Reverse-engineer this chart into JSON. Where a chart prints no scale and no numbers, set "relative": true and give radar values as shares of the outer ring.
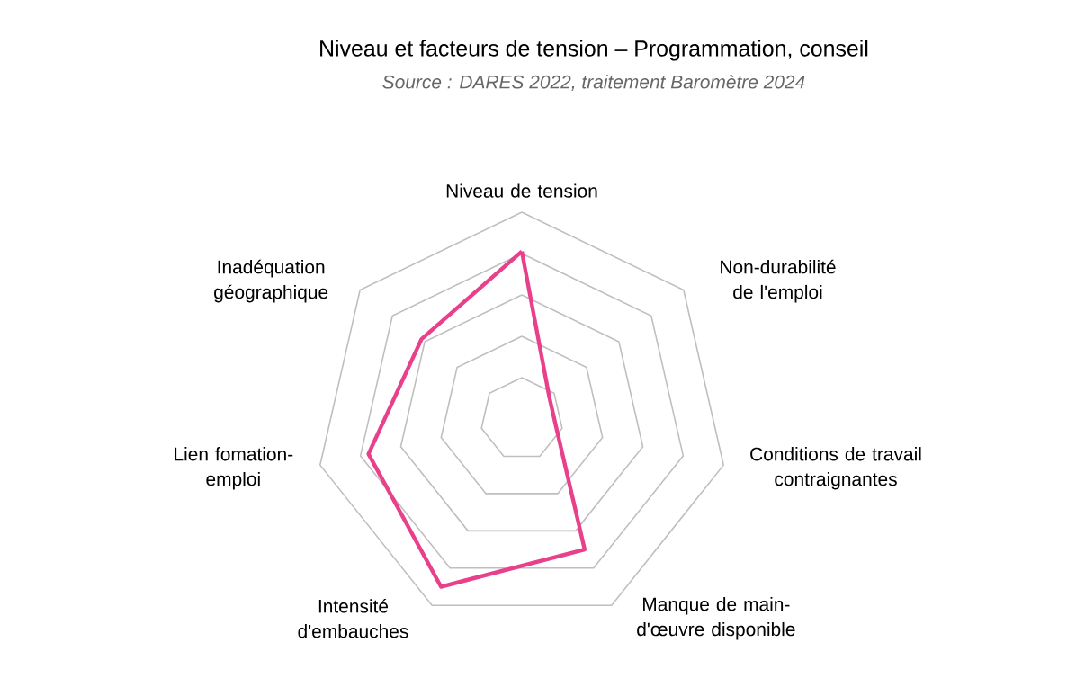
{
  "chart_data": {
    "type": "radar",
    "title": "Niveau et facteurs de tension – Programmation, conseil",
    "subtitle": "Source : DARES 2022, traitement Baromètre 2024",
    "categories": [
      "Niveau de tension",
      "Non-durabilité de l'emploi",
      "Conditions de travail contraignantes",
      "Manque de main-d'œuvre disponible",
      "Intensité d'embauches",
      "Lien fomation-emploi",
      "Inadéquation géographique"
    ],
    "relative": true,
    "grid": true,
    "series": [
      {
        "color": "#e8408a",
        "values": [
          0.81,
          0.17,
          0.17,
          0.7,
          0.9,
          0.76,
          0.62
        ]
      }
    ]
  }
}
